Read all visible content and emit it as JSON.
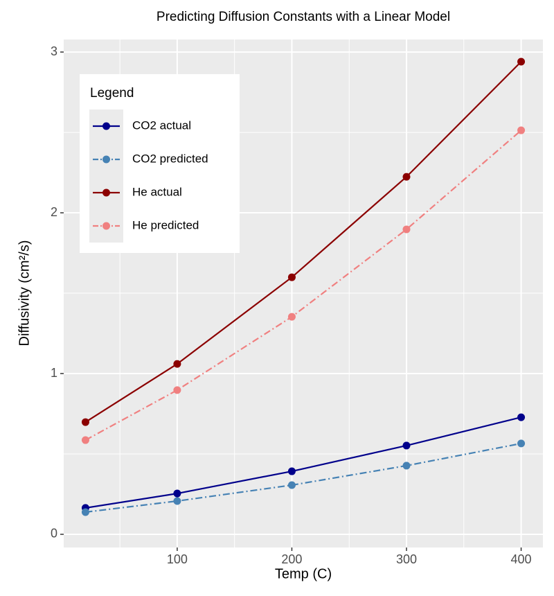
{
  "chart_data": {
    "type": "line",
    "title": "Predicting Diffusion Constants with a Linear Model",
    "x_label": "Temp (C)",
    "y_label": "Diffusivity (cm²/s)",
    "legend_title": "Legend",
    "legend_position": "top-left",
    "grid": true,
    "x": [
      20,
      100,
      200,
      300,
      400
    ],
    "xlim": [
      1,
      419
    ],
    "xticks": [
      100,
      200,
      300,
      400
    ],
    "ylim": [
      -0.082,
      3.078
    ],
    "yticks": [
      0,
      1,
      2,
      3
    ],
    "series": [
      {
        "name": "CO2 actual",
        "color": "#00008b",
        "linetype": "solid",
        "values": [
          0.164,
          0.254,
          0.392,
          0.552,
          0.728
        ]
      },
      {
        "name": "CO2 predicted",
        "color": "#4682b4",
        "linetype": "dashdot",
        "values": [
          0.138,
          0.207,
          0.306,
          0.427,
          0.565
        ]
      },
      {
        "name": "He actual",
        "color": "#8b0000",
        "linetype": "solid",
        "values": [
          0.698,
          1.06,
          1.599,
          2.224,
          2.94
        ]
      },
      {
        "name": "He predicted",
        "color": "#f08080",
        "linetype": "dashdot",
        "values": [
          0.586,
          0.897,
          1.353,
          1.897,
          2.513
        ]
      }
    ]
  }
}
